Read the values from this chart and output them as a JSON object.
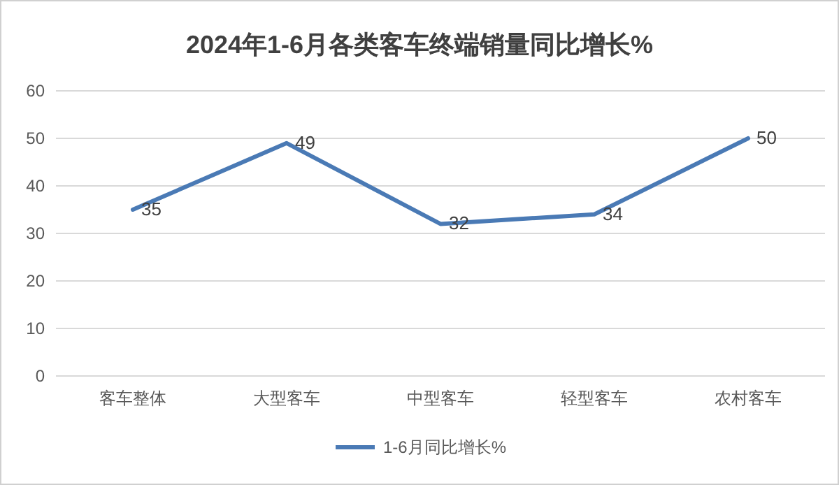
{
  "chart_data": {
    "type": "line",
    "title": "2024年1-6月各类客车终端销量同比增长%",
    "categories": [
      "客车整体",
      "大型客车",
      "中型客车",
      "轻型客车",
      "农村客车"
    ],
    "series": [
      {
        "name": "1-6月同比增长%",
        "color": "#4a7ab5",
        "values": [
          35,
          49,
          32,
          34,
          50
        ]
      }
    ],
    "ylim": [
      0,
      60
    ],
    "yticks": [
      0,
      10,
      20,
      30,
      40,
      50,
      60
    ],
    "grid": "y",
    "legend": "bottom",
    "data_labels": true
  }
}
